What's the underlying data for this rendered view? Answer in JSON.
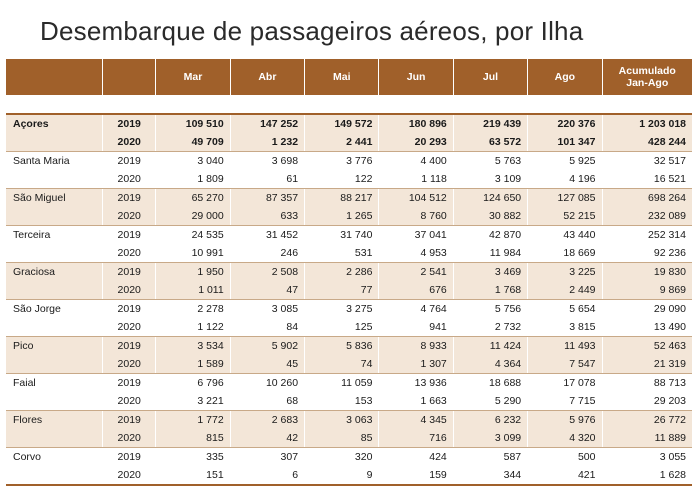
{
  "title": "Desembarque de passageiros aéreos, por Ilha",
  "columns": [
    "",
    "",
    "Mar",
    "Abr",
    "Mai",
    "Jun",
    "Jul",
    "Ago",
    "Acumulado\nJan-Ago"
  ],
  "rows": [
    {
      "island": "Açores",
      "year": "2019",
      "values": [
        "109 510",
        "147 252",
        "149 572",
        "180 896",
        "219 439",
        "220 376",
        "1 203 018"
      ]
    },
    {
      "island": "",
      "year": "2020",
      "values": [
        "49 709",
        "1 232",
        "2 441",
        "20 293",
        "63 572",
        "101 347",
        "428 244"
      ]
    },
    {
      "island": "Santa Maria",
      "year": "2019",
      "values": [
        "3 040",
        "3 698",
        "3 776",
        "4 400",
        "5 763",
        "5 925",
        "32 517"
      ]
    },
    {
      "island": "",
      "year": "2020",
      "values": [
        "1 809",
        "61",
        "122",
        "1 118",
        "3 109",
        "4 196",
        "16 521"
      ]
    },
    {
      "island": "São Miguel",
      "year": "2019",
      "values": [
        "65 270",
        "87 357",
        "88 217",
        "104 512",
        "124 650",
        "127 085",
        "698 264"
      ]
    },
    {
      "island": "",
      "year": "2020",
      "values": [
        "29 000",
        "633",
        "1 265",
        "8 760",
        "30 882",
        "52 215",
        "232 089"
      ]
    },
    {
      "island": "Terceira",
      "year": "2019",
      "values": [
        "24 535",
        "31 452",
        "31 740",
        "37 041",
        "42 870",
        "43 440",
        "252 314"
      ]
    },
    {
      "island": "",
      "year": "2020",
      "values": [
        "10 991",
        "246",
        "531",
        "4 953",
        "11 984",
        "18 669",
        "92 236"
      ]
    },
    {
      "island": "Graciosa",
      "year": "2019",
      "values": [
        "1 950",
        "2 508",
        "2 286",
        "2 541",
        "3 469",
        "3 225",
        "19 830"
      ]
    },
    {
      "island": "",
      "year": "2020",
      "values": [
        "1 011",
        "47",
        "77",
        "676",
        "1 768",
        "2 449",
        "9 869"
      ]
    },
    {
      "island": "São Jorge",
      "year": "2019",
      "values": [
        "2 278",
        "3 085",
        "3 275",
        "4 764",
        "5 756",
        "5 654",
        "29 090"
      ]
    },
    {
      "island": "",
      "year": "2020",
      "values": [
        "1 122",
        "84",
        "125",
        "941",
        "2 732",
        "3 815",
        "13 490"
      ]
    },
    {
      "island": "Pico",
      "year": "2019",
      "values": [
        "3 534",
        "5 902",
        "5 836",
        "8 933",
        "11 424",
        "11 493",
        "52 463"
      ]
    },
    {
      "island": "",
      "year": "2020",
      "values": [
        "1 589",
        "45",
        "74",
        "1 307",
        "4 364",
        "7 547",
        "21 319"
      ]
    },
    {
      "island": "Faial",
      "year": "2019",
      "values": [
        "6 796",
        "10 260",
        "11 059",
        "13 936",
        "18 688",
        "17 078",
        "88 713"
      ]
    },
    {
      "island": "",
      "year": "2020",
      "values": [
        "3 221",
        "68",
        "153",
        "1 663",
        "5 290",
        "7 715",
        "29 203"
      ]
    },
    {
      "island": "Flores",
      "year": "2019",
      "values": [
        "1 772",
        "2 683",
        "3 063",
        "4 345",
        "6 232",
        "5 976",
        "26 772"
      ]
    },
    {
      "island": "",
      "year": "2020",
      "values": [
        "815",
        "42",
        "85",
        "716",
        "3 099",
        "4 320",
        "11 889"
      ]
    },
    {
      "island": "Corvo",
      "year": "2019",
      "values": [
        "335",
        "307",
        "320",
        "424",
        "587",
        "500",
        "3 055"
      ]
    },
    {
      "island": "",
      "year": "2020",
      "values": [
        "151",
        "6",
        "9",
        "159",
        "344",
        "421",
        "1 628"
      ]
    }
  ],
  "colors": {
    "header_bg": "#a0602a",
    "row_shade": "#f3e6d8",
    "rule": "#a0602a"
  }
}
